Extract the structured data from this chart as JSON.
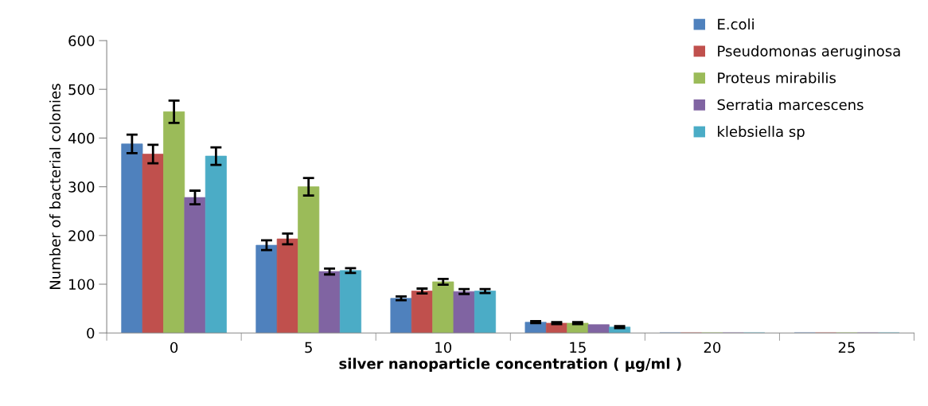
{
  "chart_data": {
    "type": "bar",
    "xlabel": "silver nanoparticle concentration ( µg/ml )",
    "ylabel": "Number of bacterial colonies",
    "categories": [
      "0",
      "5",
      "10",
      "15",
      "20",
      "25"
    ],
    "series": [
      {
        "name": "E.coli",
        "color": "#4f81bd",
        "values": [
          388,
          180,
          71,
          22,
          0,
          0
        ],
        "errors": [
          19,
          10,
          4,
          2,
          null,
          null
        ]
      },
      {
        "name": "Pseudomonas aeruginosa",
        "color": "#c0504d",
        "values": [
          367,
          193,
          86,
          20,
          0,
          0
        ],
        "errors": [
          19,
          11,
          5,
          2,
          null,
          null
        ]
      },
      {
        "name": "Proteus mirabilis",
        "color": "#9bbb59",
        "values": [
          454,
          300,
          105,
          20,
          0,
          0
        ],
        "errors": [
          23,
          18,
          6,
          2,
          null,
          null
        ]
      },
      {
        "name": "Serratia marcescens",
        "color": "#8064a2",
        "values": [
          278,
          126,
          85,
          17,
          0,
          0
        ],
        "errors": [
          14,
          6,
          5,
          null,
          null,
          null
        ]
      },
      {
        "name": "klebsiella sp",
        "color": "#4bacc6",
        "values": [
          363,
          128,
          86,
          12,
          0,
          0
        ],
        "errors": [
          18,
          5,
          4,
          2,
          null,
          null
        ]
      }
    ],
    "ylim": [
      0,
      600
    ],
    "yticks": [
      0,
      100,
      200,
      300,
      400,
      500,
      600
    ],
    "grid": false,
    "legend": "top right"
  }
}
